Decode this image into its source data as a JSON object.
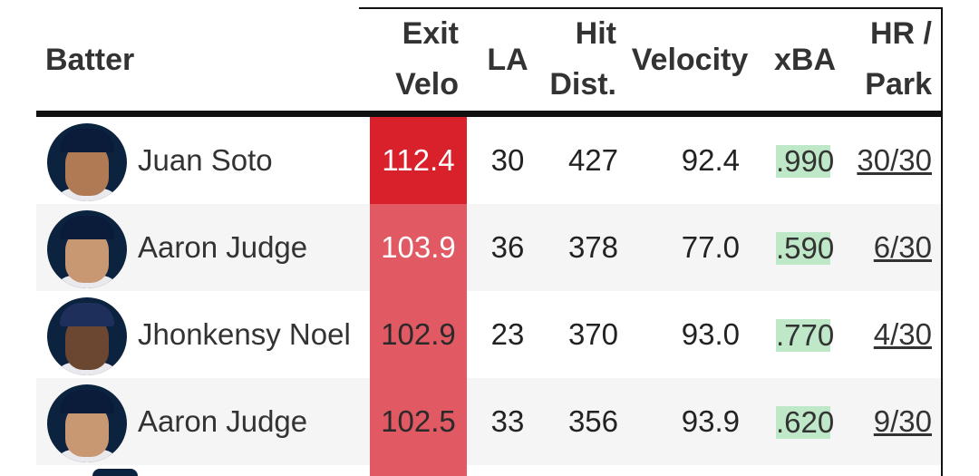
{
  "header": {
    "batter": "Batter",
    "exit_velo": [
      "Exit",
      "Velo"
    ],
    "la": "LA",
    "hit_dist": [
      "Hit",
      "Dist."
    ],
    "velocity": "Velocity",
    "xba": "xBA",
    "hr_park": [
      "HR /",
      "Park"
    ]
  },
  "colors": {
    "exit_high": "#d9212c",
    "exit_mid": "#e05963",
    "xba_bg": "#bfe8c9"
  },
  "rows": [
    {
      "name": "Juan Soto",
      "team_logo": "yankees-cap-icon",
      "exit_velo": "112.4",
      "la": "30",
      "hit_dist": "427",
      "velocity": "92.4",
      "xba": ".990",
      "hr_park": "30/30"
    },
    {
      "name": "Aaron Judge",
      "team_logo": "yankees-cap-icon",
      "exit_velo": "103.9",
      "la": "36",
      "hit_dist": "378",
      "velocity": "77.0",
      "xba": ".590",
      "hr_park": "6/30"
    },
    {
      "name": "Jhonkensy Noel",
      "team_logo": "guardians-cap-icon",
      "exit_velo": "102.9",
      "la": "23",
      "hit_dist": "370",
      "velocity": "93.0",
      "xba": ".770",
      "hr_park": "4/30"
    },
    {
      "name": "Aaron Judge",
      "team_logo": "yankees-cap-icon",
      "exit_velo": "102.5",
      "la": "33",
      "hit_dist": "356",
      "velocity": "93.9",
      "xba": ".620",
      "hr_park": "9/30"
    }
  ]
}
